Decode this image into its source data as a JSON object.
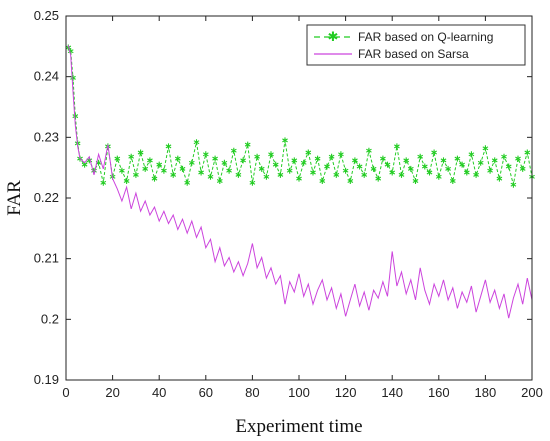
{
  "chart_data": {
    "type": "line",
    "title": "",
    "xlabel": "Experiment time",
    "ylabel": "FAR",
    "xlim": [
      0,
      200
    ],
    "ylim": [
      0.19,
      0.25
    ],
    "xticks": [
      0,
      20,
      40,
      60,
      80,
      100,
      120,
      140,
      160,
      180,
      200
    ],
    "yticks": [
      0.19,
      0.2,
      0.21,
      0.22,
      0.23,
      0.24,
      0.25
    ],
    "ytick_labels": [
      "0.19",
      "0.2",
      "0.21",
      "0.22",
      "0.23",
      "0.24",
      "0.25"
    ],
    "grid": false,
    "legend_position": "top-right",
    "series": [
      {
        "name": "FAR based on Q-learning",
        "color": "#22cc22",
        "line_style": "dashed",
        "marker": "asterisk",
        "x": [
          1,
          2,
          3,
          4,
          5,
          6,
          8,
          10,
          12,
          14,
          16,
          18,
          20,
          22,
          24,
          26,
          28,
          30,
          32,
          34,
          36,
          38,
          40,
          42,
          44,
          46,
          48,
          50,
          52,
          54,
          56,
          58,
          60,
          62,
          64,
          66,
          68,
          70,
          72,
          74,
          76,
          78,
          80,
          82,
          84,
          86,
          88,
          90,
          92,
          94,
          96,
          98,
          100,
          102,
          104,
          106,
          108,
          110,
          112,
          114,
          116,
          118,
          120,
          122,
          124,
          126,
          128,
          130,
          132,
          134,
          136,
          138,
          140,
          142,
          144,
          146,
          148,
          150,
          152,
          154,
          156,
          158,
          160,
          162,
          164,
          166,
          168,
          170,
          172,
          174,
          176,
          178,
          180,
          182,
          184,
          186,
          188,
          190,
          192,
          194,
          196,
          198,
          200
        ],
        "y": [
          0.2448,
          0.2442,
          0.2398,
          0.2335,
          0.229,
          0.2265,
          0.2255,
          0.2262,
          0.2245,
          0.2258,
          0.2225,
          0.2285,
          0.2235,
          0.2265,
          0.2245,
          0.2228,
          0.2268,
          0.2238,
          0.2275,
          0.2248,
          0.2262,
          0.2232,
          0.2255,
          0.2245,
          0.2285,
          0.2238,
          0.2265,
          0.2248,
          0.2225,
          0.2258,
          0.2292,
          0.2242,
          0.2272,
          0.2235,
          0.2265,
          0.2228,
          0.2258,
          0.2245,
          0.2278,
          0.2238,
          0.2262,
          0.2288,
          0.2225,
          0.2268,
          0.2248,
          0.2235,
          0.2272,
          0.2255,
          0.2238,
          0.2295,
          0.2245,
          0.2262,
          0.2232,
          0.2258,
          0.2275,
          0.2242,
          0.2265,
          0.2228,
          0.2252,
          0.2268,
          0.2238,
          0.2272,
          0.2245,
          0.2228,
          0.2262,
          0.2252,
          0.2238,
          0.2278,
          0.2248,
          0.2232,
          0.2265,
          0.2255,
          0.2242,
          0.2285,
          0.2238,
          0.2262,
          0.2248,
          0.2228,
          0.2268,
          0.2252,
          0.2242,
          0.2275,
          0.2235,
          0.2262,
          0.2248,
          0.2228,
          0.2265,
          0.2255,
          0.2242,
          0.2272,
          0.2238,
          0.2258,
          0.2282,
          0.2245,
          0.2262,
          0.2232,
          0.2268,
          0.2252,
          0.2222,
          0.2265,
          0.2248,
          0.2275,
          0.2235
        ]
      },
      {
        "name": "FAR based on Sarsa",
        "color": "#cc44dd",
        "line_style": "solid",
        "marker": "none",
        "x": [
          1,
          2,
          3,
          4,
          5,
          6,
          8,
          10,
          12,
          14,
          16,
          18,
          20,
          22,
          24,
          26,
          28,
          30,
          32,
          34,
          36,
          38,
          40,
          42,
          44,
          46,
          48,
          50,
          52,
          54,
          56,
          58,
          60,
          62,
          64,
          66,
          68,
          70,
          72,
          74,
          76,
          78,
          80,
          82,
          84,
          86,
          88,
          90,
          92,
          94,
          96,
          98,
          100,
          102,
          104,
          106,
          108,
          110,
          112,
          114,
          116,
          118,
          120,
          122,
          124,
          126,
          128,
          130,
          132,
          134,
          136,
          138,
          140,
          142,
          144,
          146,
          148,
          150,
          152,
          154,
          156,
          158,
          160,
          162,
          164,
          166,
          168,
          170,
          172,
          174,
          176,
          178,
          180,
          182,
          184,
          186,
          188,
          190,
          192,
          194,
          196,
          198,
          200
        ],
        "y": [
          0.2452,
          0.2435,
          0.2375,
          0.232,
          0.2285,
          0.2265,
          0.2258,
          0.2268,
          0.2238,
          0.2272,
          0.2248,
          0.2288,
          0.2232,
          0.2215,
          0.2195,
          0.2218,
          0.2182,
          0.2208,
          0.2178,
          0.2195,
          0.2172,
          0.2185,
          0.2162,
          0.2178,
          0.2158,
          0.2172,
          0.2148,
          0.2165,
          0.2142,
          0.2162,
          0.2135,
          0.2152,
          0.2118,
          0.2132,
          0.2095,
          0.2118,
          0.2088,
          0.2102,
          0.2078,
          0.2095,
          0.2072,
          0.2092,
          0.2125,
          0.2085,
          0.2102,
          0.2068,
          0.2085,
          0.2058,
          0.2072,
          0.2025,
          0.2062,
          0.2045,
          0.2075,
          0.2038,
          0.2058,
          0.2025,
          0.2048,
          0.2065,
          0.2032,
          0.2052,
          0.2018,
          0.2042,
          0.2005,
          0.2032,
          0.2058,
          0.2022,
          0.2045,
          0.2015,
          0.2048,
          0.2035,
          0.2062,
          0.2038,
          0.2112,
          0.2055,
          0.2078,
          0.2042,
          0.2065,
          0.2032,
          0.2085,
          0.2048,
          0.2025,
          0.2058,
          0.2038,
          0.2065,
          0.2032,
          0.2052,
          0.2018,
          0.2045,
          0.2028,
          0.2055,
          0.2012,
          0.2038,
          0.2065,
          0.2028,
          0.2048,
          0.2018,
          0.2042,
          0.2002,
          0.2035,
          0.2058,
          0.2025,
          0.2068,
          0.2032
        ]
      }
    ]
  }
}
